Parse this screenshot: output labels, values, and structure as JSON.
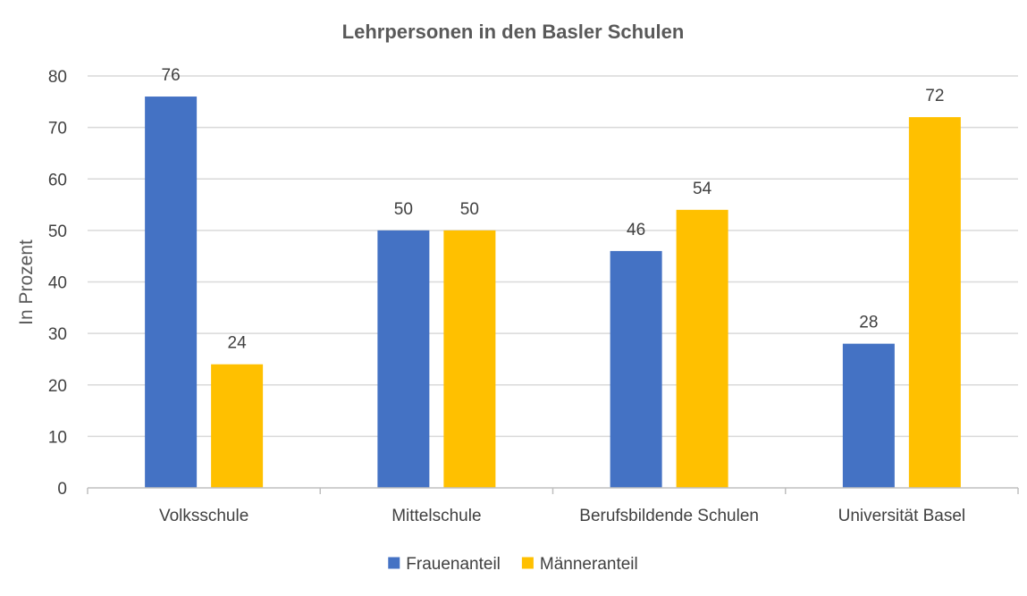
{
  "chart_data": {
    "type": "bar",
    "title": "Lehrpersonen in den Basler Schulen",
    "xlabel": "",
    "ylabel": "In Prozent",
    "ylim": [
      0,
      80
    ],
    "yticks": [
      0,
      10,
      20,
      30,
      40,
      50,
      60,
      70,
      80
    ],
    "grid": true,
    "legend_position": "bottom",
    "categories": [
      "Volksschule",
      "Mittelschule",
      "Berufsbildende Schulen",
      "Universität Basel"
    ],
    "series": [
      {
        "name": "Frauenanteil",
        "color": "#4472c4",
        "values": [
          76,
          50,
          46,
          28
        ]
      },
      {
        "name": "Männeranteil",
        "color": "#ffc000",
        "values": [
          24,
          50,
          54,
          72
        ]
      }
    ],
    "data_labels": true
  }
}
